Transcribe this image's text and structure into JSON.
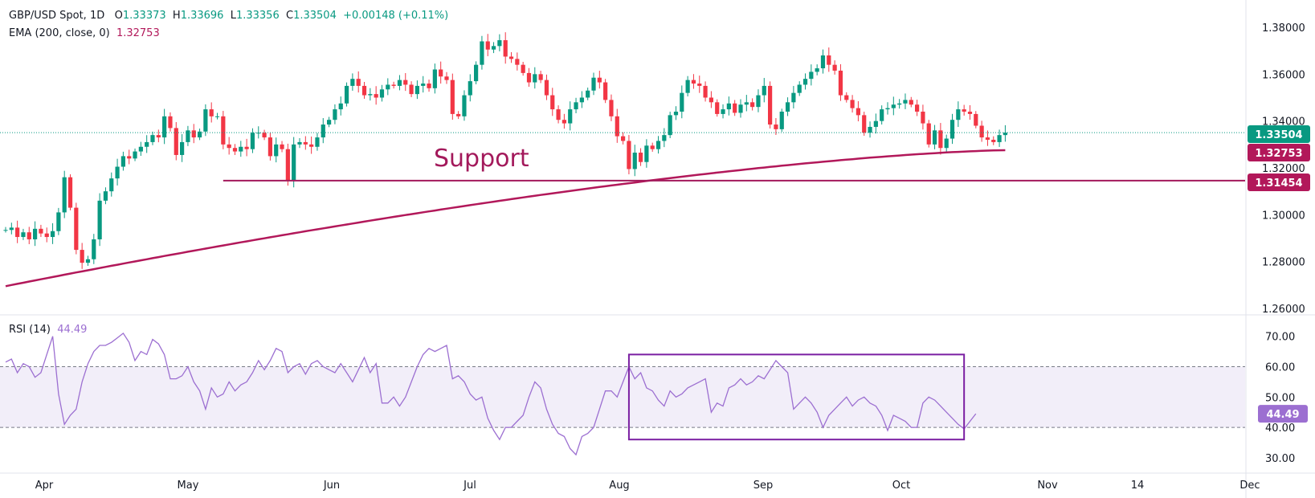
{
  "header": {
    "symbol": "GBP/USD Spot, 1D",
    "o_label": "O",
    "o": "1.33373",
    "h_label": "H",
    "h": "1.33696",
    "l_label": "L",
    "l": "1.33356",
    "c_label": "C",
    "c": "1.33504",
    "change": "+0.00148 (+0.11%)"
  },
  "ema_legend": {
    "label": "EMA (200, close, 0)",
    "value": "1.32753"
  },
  "rsi_legend": {
    "label": "RSI (14)",
    "value": "44.49"
  },
  "colors": {
    "up": "#089981",
    "down": "#f23645",
    "ema": "#b2185a",
    "support": "#a3195b",
    "rsi": "#9c6fd1",
    "rsi_box": "#7b1fa2",
    "rsi_band": "#7e57c2"
  },
  "chart_data": [
    {
      "type": "candlestick",
      "title": "GBP/USD Spot, 1D",
      "ylim": [
        1.26,
        1.38
      ],
      "y_ticks": [
        "1.26000",
        "1.28000",
        "1.30000",
        "1.32000",
        "1.34000",
        "1.36000",
        "1.38000"
      ],
      "x_ticks": [
        "Apr",
        "May",
        "Jun",
        "Jul",
        "Aug",
        "Sep",
        "Oct",
        "Nov",
        "14",
        "Dec"
      ],
      "price_tags": [
        {
          "value": "1.33504",
          "color": "#089981"
        },
        {
          "value": "1.32753",
          "color": "#b2185a"
        },
        {
          "value": "1.31454",
          "color": "#b2185a"
        }
      ],
      "annotation": "Support",
      "support_level": 1.31454,
      "last_price": 1.33504,
      "ema200_start": 1.2695,
      "ema200_end": 1.32753,
      "open_first": 1.2935,
      "closes": [
        1.2935,
        1.2945,
        1.2905,
        1.2925,
        1.2895,
        1.294,
        1.292,
        1.2905,
        1.293,
        1.301,
        1.316,
        1.303,
        1.285,
        1.2795,
        1.281,
        1.2895,
        1.306,
        1.31,
        1.3155,
        1.3205,
        1.325,
        1.324,
        1.327,
        1.329,
        1.331,
        1.334,
        1.333,
        1.342,
        1.337,
        1.3255,
        1.331,
        1.336,
        1.333,
        1.3355,
        1.345,
        1.342,
        1.342,
        1.33,
        1.3285,
        1.327,
        1.329,
        1.328,
        1.335,
        1.335,
        1.333,
        1.325,
        1.33,
        1.328,
        1.3145,
        1.33,
        1.331,
        1.33,
        1.329,
        1.333,
        1.3385,
        1.3405,
        1.345,
        1.3475,
        1.355,
        1.358,
        1.355,
        1.351,
        1.3515,
        1.35,
        1.3535,
        1.3555,
        1.355,
        1.3575,
        1.3555,
        1.3515,
        1.355,
        1.356,
        1.354,
        1.362,
        1.359,
        1.3575,
        1.343,
        1.342,
        1.351,
        1.357,
        1.364,
        1.374,
        1.3705,
        1.372,
        1.3745,
        1.3675,
        1.3665,
        1.364,
        1.3605,
        1.3565,
        1.36,
        1.3575,
        1.351,
        1.345,
        1.3405,
        1.339,
        1.345,
        1.348,
        1.35,
        1.353,
        1.3585,
        1.3565,
        1.349,
        1.342,
        1.3335,
        1.3315,
        1.3195,
        1.3265,
        1.3225,
        1.3295,
        1.328,
        1.3315,
        1.334,
        1.3425,
        1.344,
        1.352,
        1.3575,
        1.356,
        1.355,
        1.35,
        1.348,
        1.343,
        1.345,
        1.3475,
        1.3435,
        1.347,
        1.348,
        1.346,
        1.351,
        1.355,
        1.3385,
        1.3365,
        1.344,
        1.348,
        1.352,
        1.3555,
        1.358,
        1.361,
        1.3625,
        1.368,
        1.364,
        1.3615,
        1.351,
        1.349,
        1.3455,
        1.3425,
        1.335,
        1.3375,
        1.34,
        1.345,
        1.3455,
        1.347,
        1.3475,
        1.349,
        1.347,
        1.344,
        1.339,
        1.33,
        1.336,
        1.3285,
        1.3325,
        1.3405,
        1.345,
        1.344,
        1.343,
        1.338,
        1.333,
        1.332,
        1.331,
        1.334,
        1.33504
      ]
    },
    {
      "type": "line",
      "title": "RSI (14)",
      "ylim": [
        26,
        76
      ],
      "y_ticks": [
        "30.00",
        "40.00",
        "50.00",
        "60.00",
        "70.00"
      ],
      "bands": [
        40,
        60
      ],
      "last_value": 44.49,
      "values": [
        61.5,
        62.5,
        58,
        61,
        60,
        56.5,
        58,
        64,
        70,
        51,
        41,
        44,
        46,
        55,
        61,
        65,
        67,
        67,
        68,
        69.5,
        71,
        68,
        62,
        65,
        64,
        69,
        67.5,
        64,
        56,
        56,
        57,
        60,
        55,
        52,
        46,
        53,
        50,
        51,
        55,
        52,
        54,
        55,
        58,
        62,
        59,
        62,
        66,
        65,
        58,
        60,
        61,
        57.5,
        61,
        62,
        60,
        59,
        58,
        61,
        58,
        55,
        59,
        63,
        58,
        61,
        48,
        48,
        50,
        47,
        50,
        55,
        60,
        64,
        66,
        65,
        66,
        67,
        56,
        57,
        55,
        51,
        49,
        50,
        43,
        39,
        36,
        40,
        40,
        42,
        44,
        50,
        55,
        53,
        46,
        41,
        38,
        37,
        33,
        31,
        37,
        38,
        40,
        46,
        52,
        52,
        50,
        55,
        60,
        56,
        58,
        53,
        52,
        49,
        47,
        52,
        50,
        51,
        53,
        54,
        55,
        56,
        45,
        48,
        47,
        53,
        54,
        56,
        54,
        55,
        57,
        56,
        59,
        62,
        60,
        58,
        46,
        48,
        50,
        48,
        45,
        40,
        44,
        46,
        48,
        50,
        47,
        49,
        50,
        48,
        47,
        44,
        39,
        44,
        43,
        42,
        40,
        40,
        48,
        50,
        49,
        47,
        45,
        43,
        41,
        39.5,
        42,
        44.49
      ],
      "highlight_box": {
        "from_bar": 106,
        "to_bar": 163,
        "y_range": [
          36,
          64
        ]
      }
    }
  ]
}
